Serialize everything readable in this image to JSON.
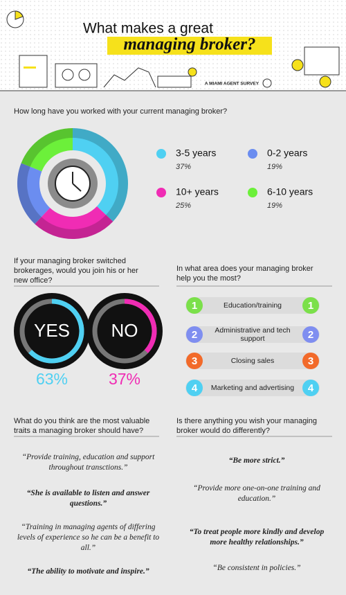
{
  "header": {
    "title_line1": "What makes a great",
    "title_line2": "managing broker?",
    "survey": "A MIAMI AGENT SURVEY"
  },
  "chart_data": [
    {
      "type": "pie",
      "title": "How long have you worked with your current managing broker?",
      "categories": [
        "3-5 years",
        "10+ years",
        "0-2 years",
        "6-10 years"
      ],
      "values": [
        37,
        25,
        19,
        19
      ],
      "value_labels": [
        "37%",
        "25%",
        "19%",
        "19%"
      ],
      "colors": [
        "#4fd0f2",
        "#f02cb4",
        "#6b8df0",
        "#6cf03a"
      ]
    },
    {
      "type": "gauge",
      "title": "If your managing broker switched brokerages, would you join his or her new office?",
      "categories": [
        "YES",
        "NO"
      ],
      "values": [
        63,
        37
      ],
      "value_labels": [
        "63%",
        "37%"
      ],
      "colors": [
        "#4fd0f2",
        "#f02cb4"
      ]
    }
  ],
  "areas": {
    "question": "In what area does your managing broker help you the most?",
    "items": [
      {
        "rank": "1",
        "label": "Education/training",
        "color": "#7be04a"
      },
      {
        "rank": "2",
        "label": "Administrative and tech support",
        "color": "#7f8ef0"
      },
      {
        "rank": "3",
        "label": "Closing sales",
        "color": "#f26a2a"
      },
      {
        "rank": "4",
        "label": "Marketing and advertising",
        "color": "#4fd0f2"
      }
    ]
  },
  "traits": {
    "question": "What do you think are the most valuable traits a managing broker should have?",
    "quotes": [
      {
        "text": "“Provide training, education and support throughout transctions.”",
        "bold": false
      },
      {
        "text": "“She is available to listen and answer questions.”",
        "bold": true
      },
      {
        "text": "“Training in managing agents of differing levels of experience so he can be a benefit to all.”",
        "bold": false
      },
      {
        "text": "“The ability to motivate and inspire.”",
        "bold": true
      }
    ]
  },
  "wishes": {
    "question": "Is there anything you wish your managing broker would do differently?",
    "quotes": [
      {
        "text": "“Be more strict.”",
        "bold": true
      },
      {
        "text": "“Provide more one-on-one training and education.”",
        "bold": false
      },
      {
        "text": "“To treat people more kindly and develop more healthy relationships.”",
        "bold": true
      },
      {
        "text": "“Be consistent in policies.”",
        "bold": false
      }
    ]
  }
}
